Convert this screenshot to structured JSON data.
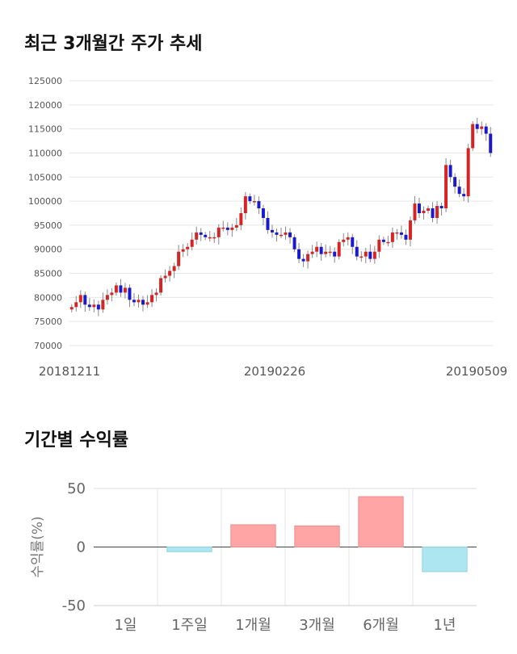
{
  "sections": {
    "price_title": "최근 3개월간 주가 추세",
    "return_title": "기간별 수익률"
  },
  "colors": {
    "up": "#d62424",
    "down": "#1a1acc",
    "positive_bar": "#ffa5a5",
    "negative_bar": "#ade6f0",
    "grid": "#e6e6e6"
  },
  "chart_data": [
    {
      "type": "candlestick",
      "ylim": [
        70000,
        125000
      ],
      "yticks": [
        "125000",
        "120000",
        "115000",
        "110000",
        "105000",
        "100000",
        "95000",
        "90000",
        "85000",
        "80000",
        "75000",
        "70000"
      ],
      "xticks": [
        "20181211",
        "20190226",
        "20190509"
      ],
      "grid": true,
      "closes": [
        78000,
        79000,
        80500,
        78500,
        78000,
        78500,
        77500,
        79500,
        80500,
        81000,
        82500,
        81000,
        82000,
        79500,
        79000,
        79500,
        78500,
        79000,
        80500,
        81000,
        84000,
        84500,
        85500,
        86500,
        89500,
        90000,
        90500,
        92000,
        93500,
        93000,
        92500,
        92500,
        92500,
        94500,
        94500,
        94000,
        94500,
        95000,
        97500,
        101000,
        100000,
        100000,
        98500,
        96500,
        94000,
        93500,
        93000,
        93000,
        93500,
        92500,
        90000,
        88000,
        87500,
        89000,
        89500,
        90500,
        89000,
        89500,
        89500,
        88500,
        91500,
        92000,
        92500,
        90500,
        88500,
        88500,
        89500,
        88000,
        89500,
        92000,
        91500,
        91500,
        93500,
        93500,
        93000,
        92000,
        96000,
        99500,
        97500,
        98000,
        98500,
        96500,
        99000,
        98500,
        107500,
        105000,
        103000,
        101500,
        101000,
        111000,
        116000,
        115000,
        115500,
        114000,
        110000
      ]
    },
    {
      "type": "bar",
      "title": "",
      "ylabel": "수익률(%)",
      "categories": [
        "1일",
        "1주일",
        "1개월",
        "3개월",
        "6개월",
        "1년"
      ],
      "values": [
        0,
        -4,
        19,
        18,
        43,
        -21
      ],
      "ylim": [
        -50,
        50
      ],
      "yticks": [
        "50",
        "0",
        "-50"
      ]
    }
  ]
}
